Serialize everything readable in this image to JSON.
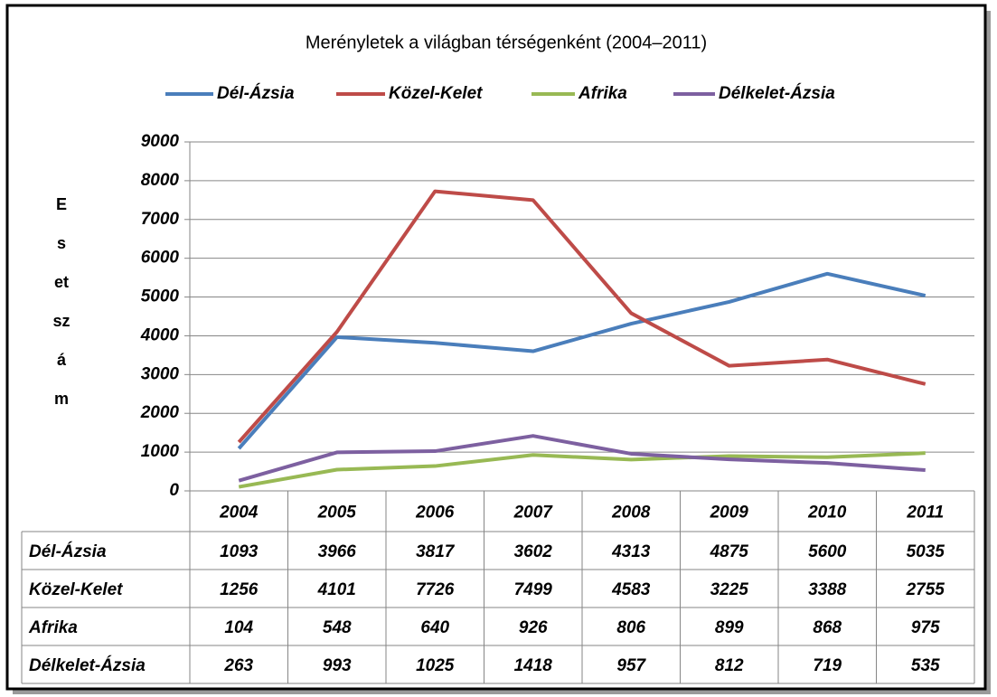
{
  "chart_data": {
    "type": "line",
    "title": "Merényletek a világban térségenként (2004–2011)",
    "y_label": "Esetszám",
    "categories": [
      "2004",
      "2005",
      "2006",
      "2007",
      "2008",
      "2009",
      "2010",
      "2011"
    ],
    "series": [
      {
        "name": "Dél-Ázsia",
        "color": "#4a7ebb",
        "values": [
          1093,
          3966,
          3817,
          3602,
          4313,
          4875,
          5600,
          5035
        ]
      },
      {
        "name": "Közel-Kelet",
        "color": "#be4b48",
        "values": [
          1256,
          4101,
          7726,
          7499,
          4583,
          3225,
          3388,
          2755
        ]
      },
      {
        "name": "Afrika",
        "color": "#98b954",
        "values": [
          104,
          548,
          640,
          926,
          806,
          899,
          868,
          975
        ]
      },
      {
        "name": "Délkelet-Ázsia",
        "color": "#7d60a0",
        "values": [
          263,
          993,
          1025,
          1418,
          957,
          812,
          719,
          535
        ]
      }
    ],
    "ylim": [
      0,
      9000
    ],
    "yticks": [
      0,
      1000,
      2000,
      3000,
      4000,
      5000,
      6000,
      7000,
      8000,
      9000
    ],
    "grid": true,
    "legend": "top"
  }
}
